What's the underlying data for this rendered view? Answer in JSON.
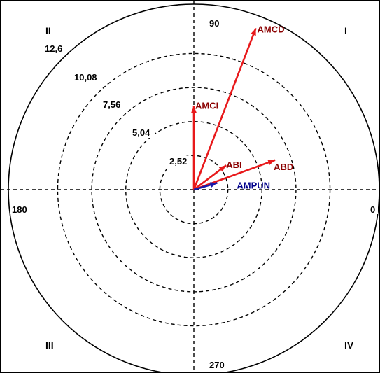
{
  "chart_data": {
    "type": "polar-vector",
    "radial_ticks": [
      "2,52",
      "5,04",
      "7,56",
      "10,08",
      "12,6"
    ],
    "radial_tick_values": [
      2.52,
      5.04,
      7.56,
      10.08,
      12.6
    ],
    "r_max": 12.6,
    "angle_labels": {
      "a0": "0",
      "a90": "90",
      "a180": "180",
      "a270": "270"
    },
    "quadrants": {
      "q1": "I",
      "q2": "II",
      "q3": "III",
      "q4": "IV"
    },
    "grid": true,
    "vectors": [
      {
        "name": "AMCD",
        "magnitude": 12.8,
        "angle": 69,
        "color": "#e8191b",
        "label_color": "#8b0000"
      },
      {
        "name": "AMCI",
        "magnitude": 6.2,
        "angle": 90,
        "color": "#e8191b",
        "label_color": "#8b0000"
      },
      {
        "name": "ABI",
        "magnitude": 3.0,
        "angle": 37,
        "color": "#e8191b",
        "label_color": "#8b0000"
      },
      {
        "name": "ABD",
        "magnitude": 6.4,
        "angle": 20,
        "color": "#e8191b",
        "label_color": "#8b0000"
      },
      {
        "name": "AMPUN",
        "magnitude": 1.8,
        "angle": 16,
        "color": "#1a1aa8",
        "label_color": "#00008b"
      }
    ]
  }
}
